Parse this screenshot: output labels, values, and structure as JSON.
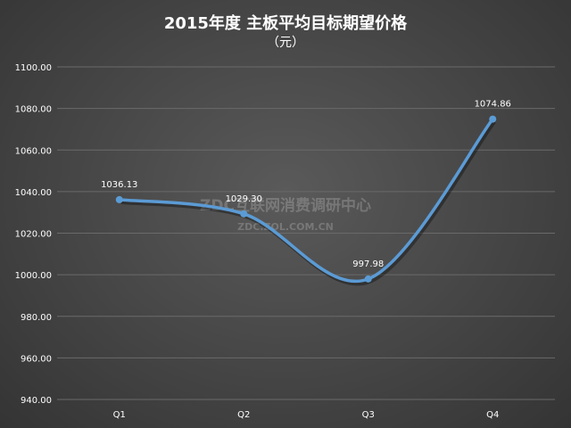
{
  "chart_data": {
    "type": "line",
    "title": "2015年度 主板平均目标期望价格",
    "subtitle": "（元）",
    "categories": [
      "Q1",
      "Q2",
      "Q3",
      "Q4"
    ],
    "values": [
      1036.13,
      1029.3,
      997.98,
      1074.86
    ],
    "value_labels": [
      "1036.13",
      "1029.30",
      "997.98",
      "1074.86"
    ],
    "ylim": [
      940,
      1100
    ],
    "yticks": [
      "940.00",
      "960.00",
      "980.00",
      "1000.00",
      "1020.00",
      "1040.00",
      "1060.00",
      "1080.00",
      "1100.00"
    ],
    "grid": true,
    "smooth": true,
    "line_color": "#5b9bd5",
    "legend": "none"
  },
  "watermark": {
    "line1": "ZDC互联网消费调研中心",
    "line2": "ZDC.ZOL.COM.CN"
  }
}
